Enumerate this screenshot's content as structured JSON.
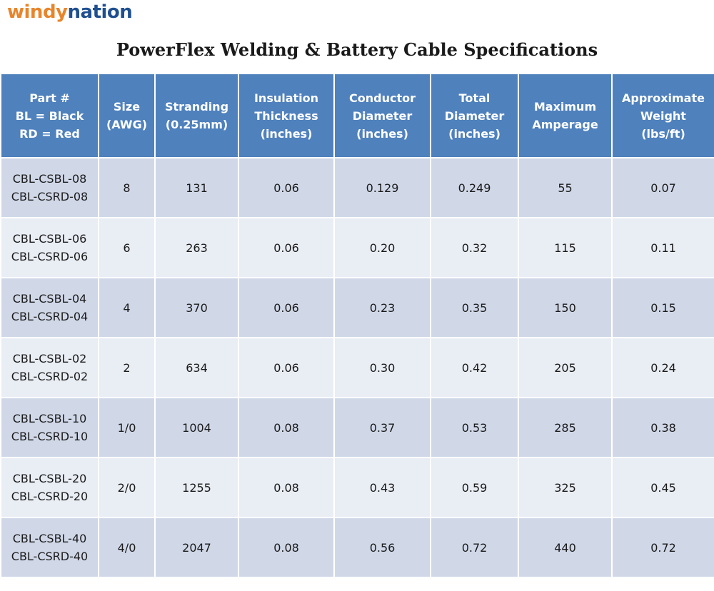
{
  "logo": {
    "part1": "windy",
    "part2": "nation"
  },
  "title": "PowerFlex Welding & Battery Cable Specifications",
  "table": {
    "headers": [
      "Part #\nBL = Black\nRD = Red",
      "Size\n(AWG)",
      "Stranding\n(0.25mm)",
      "Insulation\nThickness\n(inches)",
      "Conductor\nDiameter\n(inches)",
      "Total\nDiameter\n(inches)",
      "Maximum\nAmperage",
      "Approximate\nWeight\n(lbs/ft)"
    ],
    "rows": [
      [
        "CBL-CSBL-08\nCBL-CSRD-08",
        "8",
        "131",
        "0.06",
        "0.129",
        "0.249",
        "55",
        "0.07"
      ],
      [
        "CBL-CSBL-06\nCBL-CSRD-06",
        "6",
        "263",
        "0.06",
        "0.20",
        "0.32",
        "115",
        "0.11"
      ],
      [
        "CBL-CSBL-04\nCBL-CSRD-04",
        "4",
        "370",
        "0.06",
        "0.23",
        "0.35",
        "150",
        "0.15"
      ],
      [
        "CBL-CSBL-02\nCBL-CSRD-02",
        "2",
        "634",
        "0.06",
        "0.30",
        "0.42",
        "205",
        "0.24"
      ],
      [
        "CBL-CSBL-10\nCBL-CSRD-10",
        "1/0",
        "1004",
        "0.08",
        "0.37",
        "0.53",
        "285",
        "0.38"
      ],
      [
        "CBL-CSBL-20\nCBL-CSRD-20",
        "2/0",
        "1255",
        "0.08",
        "0.43",
        "0.59",
        "325",
        "0.45"
      ],
      [
        "CBL-CSBL-40\nCBL-CSRD-40",
        "4/0",
        "2047",
        "0.08",
        "0.56",
        "0.72",
        "440",
        "0.72"
      ]
    ]
  },
  "colors": {
    "header_bg": "#4f81bd",
    "row_odd": "#d0d8e8",
    "row_even": "#e9edf4",
    "logo_orange": "#e8852b",
    "logo_blue": "#1f4f8f"
  }
}
